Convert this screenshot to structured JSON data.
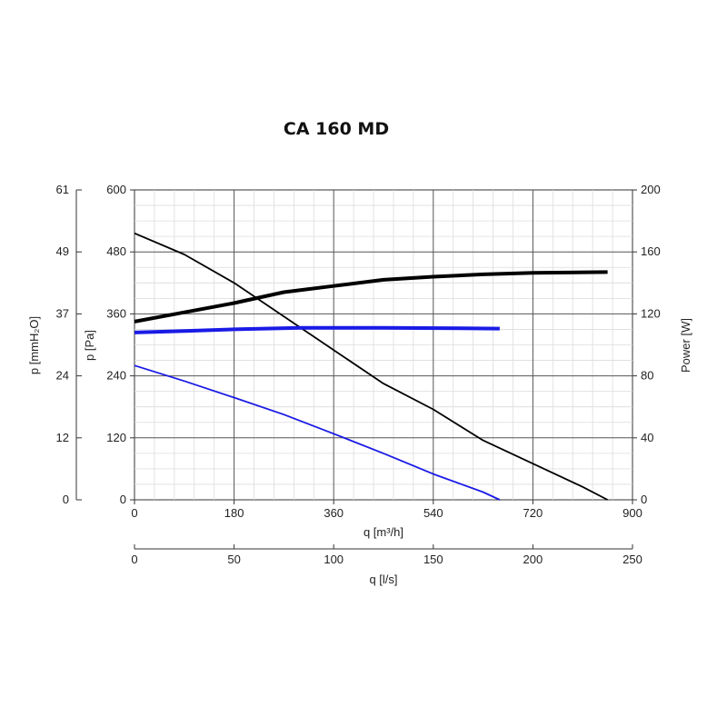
{
  "chart_data": {
    "type": "line",
    "title": "CA 160 MD",
    "grid": true,
    "axes": {
      "y_left_outer": {
        "label": "p [mmH₂O]",
        "ticks": [
          "61",
          "49",
          "37",
          "24",
          "12",
          "0"
        ],
        "range": [
          0,
          61
        ]
      },
      "y_left": {
        "label": "p [Pa]",
        "ticks": [
          "600",
          "480",
          "360",
          "240",
          "120",
          "0"
        ],
        "range": [
          0,
          600
        ]
      },
      "y_right": {
        "label": "Power [W]",
        "ticks": [
          "200",
          "160",
          "120",
          "80",
          "40",
          "0"
        ],
        "range": [
          0,
          200
        ]
      },
      "x": {
        "label": "q [m³/h]",
        "ticks": [
          "0",
          "180",
          "360",
          "540",
          "720",
          "900"
        ],
        "range": [
          0,
          900
        ]
      },
      "x_secondary": {
        "label": "q [l/s]",
        "ticks": [
          "0",
          "50",
          "100",
          "150",
          "200",
          "250"
        ],
        "range": [
          0,
          250
        ]
      }
    },
    "series": [
      {
        "axis": "y_left",
        "color": "#000000",
        "width": "thin",
        "points": [
          [
            0,
            516
          ],
          [
            90,
            475
          ],
          [
            180,
            420
          ],
          [
            270,
            355
          ],
          [
            360,
            290
          ],
          [
            450,
            225
          ],
          [
            540,
            175
          ],
          [
            630,
            115
          ],
          [
            720,
            70
          ],
          [
            810,
            25
          ],
          [
            855,
            0
          ]
        ]
      },
      {
        "axis": "y_left",
        "color": "#1a1ae6",
        "width": "thin",
        "points": [
          [
            0,
            260
          ],
          [
            90,
            230
          ],
          [
            180,
            198
          ],
          [
            270,
            165
          ],
          [
            360,
            128
          ],
          [
            450,
            90
          ],
          [
            540,
            50
          ],
          [
            630,
            15
          ],
          [
            660,
            0
          ]
        ]
      },
      {
        "axis": "y_right",
        "color": "#000000",
        "width": "thick",
        "points": [
          [
            0,
            115
          ],
          [
            90,
            121
          ],
          [
            180,
            127
          ],
          [
            270,
            134
          ],
          [
            360,
            138
          ],
          [
            450,
            142
          ],
          [
            540,
            144
          ],
          [
            630,
            145.5
          ],
          [
            720,
            146.5
          ],
          [
            855,
            147
          ]
        ]
      },
      {
        "axis": "y_right",
        "color": "#1a1ae6",
        "width": "thick",
        "points": [
          [
            0,
            108
          ],
          [
            90,
            109
          ],
          [
            180,
            110
          ],
          [
            300,
            111
          ],
          [
            450,
            111
          ],
          [
            660,
            110.5
          ]
        ]
      }
    ]
  }
}
